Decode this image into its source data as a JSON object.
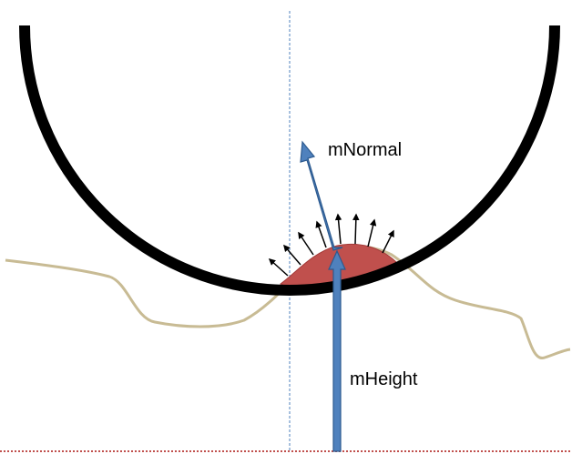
{
  "labels": {
    "normal": "mNormal",
    "height": "mHeight"
  },
  "colors": {
    "background": "#ffffff",
    "bowl": "#000000",
    "terrain": "#c8bb94",
    "contact_fill": "#c0504d",
    "vector_arrow": "#4f81bd",
    "vector_arrow_outline": "#2c5a8f",
    "center_line": "#4f81bd",
    "ground_line": "#c0504d",
    "small_arrows": "#000000"
  }
}
